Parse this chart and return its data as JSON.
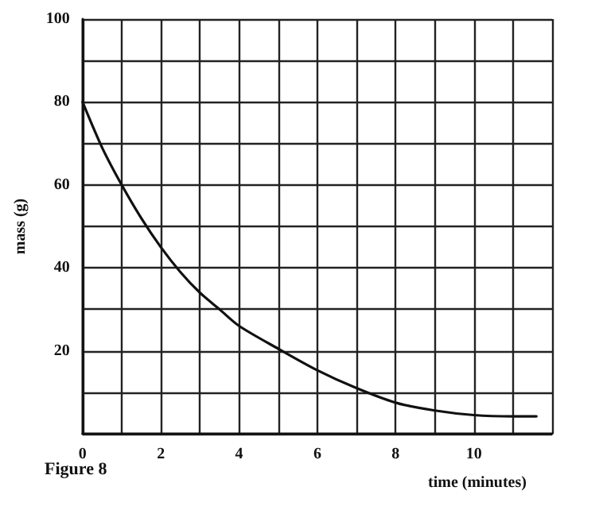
{
  "chart_data": {
    "type": "line",
    "xlabel": "time (minutes)",
    "ylabel": "mass (g)",
    "annotations": [
      "Figure 8"
    ],
    "x": [
      0,
      0.5,
      1,
      1.5,
      2,
      2.5,
      3,
      3.5,
      4,
      5,
      6,
      7,
      8,
      9,
      10,
      11,
      11.6
    ],
    "series": [
      {
        "color": "#111111",
        "values": [
          80,
          69,
          60,
          52,
          45,
          39,
          34,
          30,
          26,
          20.5,
          15.3,
          11,
          7.5,
          5.6,
          4.5,
          4.2,
          4.2
        ]
      }
    ],
    "xlim": [
      0,
      12
    ],
    "xticks": [
      0,
      {
        "value": 1,
        "label": null
      },
      2,
      {
        "value": 3,
        "label": null
      },
      4,
      {
        "value": 5,
        "label": null
      },
      6,
      {
        "value": 7,
        "label": null
      },
      8,
      {
        "value": 9,
        "label": null
      },
      10,
      {
        "value": 11,
        "label": null
      },
      {
        "value": 12,
        "label": null
      }
    ],
    "ylim": [
      0,
      100
    ],
    "yticks": [
      {
        "value": 0,
        "label": null
      },
      {
        "value": 10,
        "label": null
      },
      20,
      {
        "value": 30,
        "label": null
      },
      40,
      {
        "value": 50,
        "label": null
      },
      60,
      {
        "value": 70,
        "label": null
      },
      80,
      {
        "value": 90,
        "label": null
      },
      100
    ],
    "grid": true,
    "marker": "none",
    "line_style": "solid"
  }
}
